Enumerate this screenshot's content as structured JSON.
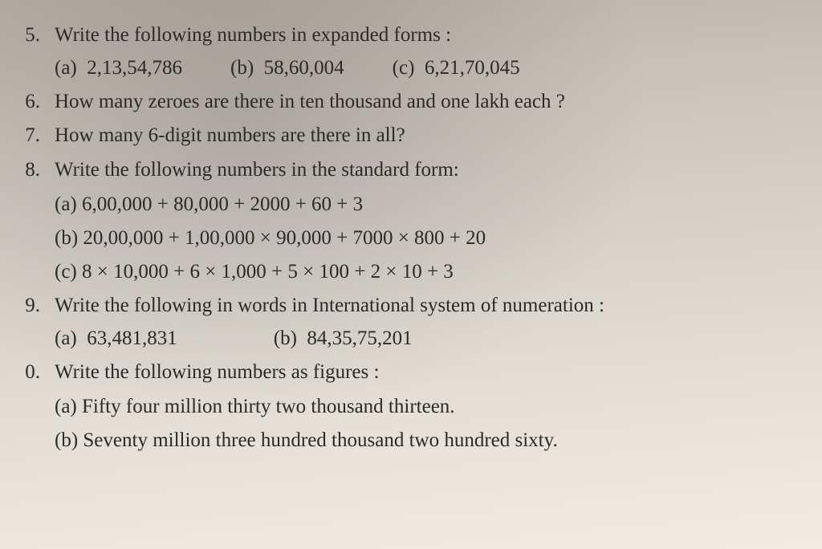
{
  "questions": [
    {
      "num": "5.",
      "text": "Write the following numbers in expanded forms :",
      "inline_parts": [
        {
          "label": "(a)",
          "value": "2,13,54,786"
        },
        {
          "label": "(b)",
          "value": "58,60,004"
        },
        {
          "label": "(c)",
          "value": "6,21,70,045"
        }
      ]
    },
    {
      "num": "6.",
      "text": "How many zeroes are there in ten thousand and one lakh each ?"
    },
    {
      "num": "7.",
      "text": "How many 6-digit numbers are there in all?"
    },
    {
      "num": "8.",
      "text": "Write the following numbers in the standard form:",
      "sub_list": [
        "(a)  6,00,000 + 80,000 + 2000 + 60 + 3",
        "(b)  20,00,000 + 1,00,000 × 90,000 + 7000 × 800 + 20",
        "(c)  8 × 10,000 + 6 × 1,000 + 5 × 100 + 2 × 10 + 3"
      ]
    },
    {
      "num": "9.",
      "text": "Write the following in words in International system of numeration :",
      "inline_parts": [
        {
          "label": "(a)",
          "value": "63,481,831"
        },
        {
          "label": "(b)",
          "value": "84,35,75,201"
        }
      ]
    },
    {
      "num": "0.",
      "text": "Write the following numbers as figures :",
      "sub_list": [
        "(a)  Fifty four million thirty two thousand thirteen.",
        "(b)  Seventy million three hundred thousand two hundred sixty."
      ]
    }
  ],
  "style": {
    "font_family": "Georgia, 'Times New Roman', serif",
    "text_color": "#2a2a2a",
    "font_size_pt": 19,
    "background_gradient_start": "#b8b0a8",
    "background_gradient_end": "#f0ece4"
  }
}
